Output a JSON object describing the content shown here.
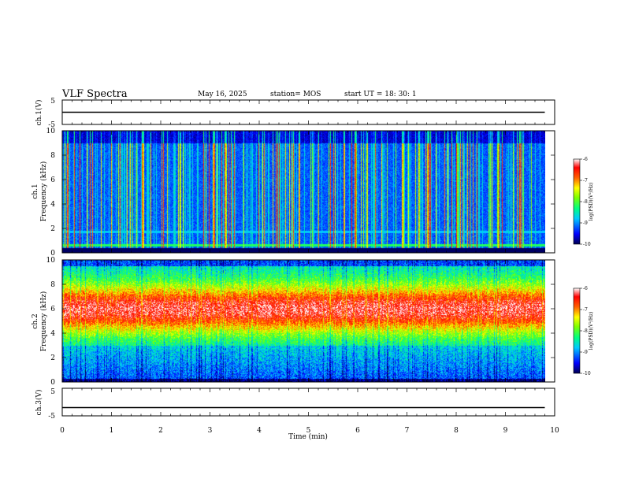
{
  "header": {
    "title": "VLF Spectra",
    "date": "May 16, 2025",
    "station": "station= MOS",
    "start": "start  UT  =   18: 30: 1"
  },
  "colors": {
    "scale": [
      "#000080",
      "#0000ff",
      "#00a0ff",
      "#00ffff",
      "#00ff80",
      "#80ff00",
      "#ffff00",
      "#ff8000",
      "#ff0000",
      "#ffffff"
    ]
  },
  "chart_data": [
    {
      "type": "line",
      "panel": "ch1-voltage",
      "ylabel": "ch.1(V)",
      "ylim": [
        -5,
        5
      ],
      "yticks": [
        "5",
        "-5"
      ],
      "x": [
        0,
        9.8
      ],
      "values": [
        0,
        0
      ]
    },
    {
      "type": "heatmap",
      "panel": "ch1-spectrogram",
      "ylabel_line1": "ch.1",
      "ylabel_line2": "Frequency (kHz)",
      "ylim": [
        0,
        10
      ],
      "yticks": [
        "0",
        "2",
        "4",
        "6",
        "8",
        "10"
      ],
      "xlim": [
        0,
        10
      ],
      "data_end_min": 9.8,
      "colorbar": {
        "label": "log(PSD)(V²/Hz)",
        "range": [
          -10,
          -6
        ],
        "ticks": [
          "-6",
          "-7",
          "-8",
          "-9",
          "-10"
        ]
      }
    },
    {
      "type": "heatmap",
      "panel": "ch2-spectrogram",
      "ylabel_line1": "ch.2",
      "ylabel_line2": "Frequency (kHz)",
      "ylim": [
        0,
        10
      ],
      "yticks": [
        "0",
        "2",
        "4",
        "6",
        "8",
        "10"
      ],
      "xlim": [
        0,
        10
      ],
      "data_end_min": 9.8,
      "colorbar": {
        "label": "log(PSD)(V²/Hz)",
        "range": [
          -10,
          -6
        ],
        "ticks": [
          "-6",
          "-7",
          "-8",
          "-9",
          "-10"
        ]
      }
    },
    {
      "type": "line",
      "panel": "ch3-voltage",
      "ylabel": "ch.3(V)",
      "ylim": [
        -5,
        5
      ],
      "yticks": [
        "5",
        "-5"
      ],
      "x": [
        0,
        9.8
      ],
      "values": [
        -2,
        -2
      ]
    }
  ],
  "xaxis": {
    "label": "Time (min)",
    "range": [
      0,
      10
    ],
    "ticks": [
      "0",
      "1",
      "2",
      "3",
      "4",
      "5",
      "6",
      "7",
      "8",
      "9",
      "10"
    ]
  }
}
